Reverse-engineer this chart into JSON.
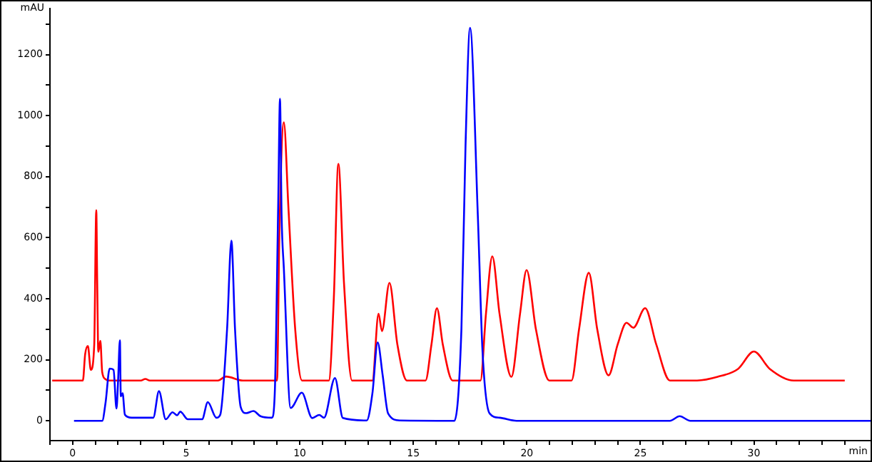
{
  "chart_data": {
    "type": "line",
    "xlabel": "min",
    "ylabel": "mAU",
    "xlim": [
      -1,
      35.2
    ],
    "ylim": [
      -65,
      1350
    ],
    "xticks": [
      {
        "value": -1,
        "label": null
      },
      0,
      {
        "value": 1,
        "label": null
      },
      {
        "value": 2,
        "label": null
      },
      {
        "value": 3,
        "label": null
      },
      {
        "value": 4,
        "label": null
      },
      5,
      {
        "value": 6,
        "label": null
      },
      {
        "value": 7,
        "label": null
      },
      {
        "value": 8,
        "label": null
      },
      {
        "value": 9,
        "label": null
      },
      10,
      {
        "value": 11,
        "label": null
      },
      {
        "value": 12,
        "label": null
      },
      {
        "value": 13,
        "label": null
      },
      {
        "value": 14,
        "label": null
      },
      15,
      {
        "value": 16,
        "label": null
      },
      {
        "value": 17,
        "label": null
      },
      {
        "value": 18,
        "label": null
      },
      {
        "value": 19,
        "label": null
      },
      20,
      {
        "value": 21,
        "label": null
      },
      {
        "value": 22,
        "label": null
      },
      {
        "value": 23,
        "label": null
      },
      {
        "value": 24,
        "label": null
      },
      25,
      {
        "value": 26,
        "label": null
      },
      {
        "value": 27,
        "label": null
      },
      {
        "value": 28,
        "label": null
      },
      {
        "value": 29,
        "label": null
      },
      30,
      {
        "value": 31,
        "label": null
      },
      {
        "value": 32,
        "label": null
      },
      {
        "value": 33,
        "label": null
      },
      {
        "value": 34,
        "label": null
      }
    ],
    "yticks": [
      0,
      {
        "value": 100,
        "label": null
      },
      200,
      {
        "value": 300,
        "label": null
      },
      400,
      {
        "value": 500,
        "label": null
      },
      600,
      {
        "value": 700,
        "label": null
      },
      800,
      {
        "value": 900,
        "label": null
      },
      1000,
      {
        "value": 1100,
        "label": null
      },
      1200,
      {
        "value": 1300,
        "label": null
      }
    ],
    "grid": false,
    "legend": false,
    "marker": "none",
    "line_style": "solid",
    "series": [
      {
        "color": "#0000ff",
        "x": [
          0.06,
          1.3,
          1.45,
          1.63,
          1.8,
          1.93,
          2.0,
          2.08,
          2.12,
          2.2,
          2.3,
          2.6,
          3.55,
          3.8,
          4.1,
          4.4,
          4.6,
          4.74,
          5.07,
          5.7,
          5.95,
          6.33,
          6.5,
          6.8,
          6.99,
          7.15,
          7.4,
          7.64,
          7.96,
          8.27,
          8.77,
          8.9,
          9.05,
          9.13,
          9.2,
          9.3,
          9.6,
          10.09,
          10.55,
          10.86,
          11.07,
          11.55,
          11.9,
          12.95,
          13.2,
          13.43,
          13.65,
          13.89,
          14.41,
          16.81,
          17.12,
          17.3,
          17.5,
          17.84,
          18.05,
          18.36,
          18.8,
          19.55,
          26.3,
          26.73,
          27.2,
          35.15
        ],
        "values": [
          0,
          0,
          60,
          171,
          167,
          40,
          130,
          264,
          80,
          90,
          20,
          10,
          10,
          97,
          5,
          28,
          18,
          30,
          5,
          5,
          61,
          10,
          20,
          300,
          590,
          300,
          45,
          25,
          32,
          15,
          10,
          90,
          700,
          1055,
          675,
          500,
          42,
          92,
          9,
          19,
          10,
          140,
          9,
          1,
          90,
          257,
          150,
          24,
          1,
          0,
          302,
          900,
          1288,
          677,
          226,
          24,
          10,
          0,
          0,
          15,
          0,
          0
        ]
      },
      {
        "color": "#ff0000",
        "x": [
          -0.9,
          0.45,
          0.55,
          0.67,
          0.8,
          0.95,
          1.04,
          1.08,
          1.13,
          1.22,
          1.3,
          1.45,
          1.6,
          3.0,
          3.2,
          3.4,
          6.4,
          6.75,
          7.5,
          9.0,
          9.1,
          9.3,
          9.5,
          9.8,
          10.1,
          11.28,
          11.5,
          11.7,
          11.95,
          12.3,
          13.2,
          13.47,
          13.62,
          13.95,
          14.3,
          14.72,
          15.54,
          15.8,
          16.04,
          16.3,
          16.73,
          17.96,
          18.2,
          18.48,
          18.8,
          19.32,
          19.7,
          19.99,
          20.4,
          20.99,
          21.97,
          22.3,
          22.73,
          23.1,
          23.6,
          24.0,
          24.39,
          24.69,
          25.21,
          25.7,
          26.3,
          27.5,
          28.4,
          29.3,
          30.0,
          30.7,
          31.75,
          34.0
        ],
        "values": [
          132,
          132,
          218,
          245,
          167,
          250,
          690,
          460,
          226,
          262,
          160,
          136,
          132,
          132,
          137,
          132,
          132,
          145,
          132,
          132,
          600,
          978,
          700,
          300,
          132,
          132,
          400,
          842,
          450,
          132,
          132,
          351,
          294,
          452,
          250,
          132,
          132,
          250,
          369,
          250,
          132,
          132,
          350,
          539,
          350,
          144,
          350,
          494,
          300,
          132,
          132,
          300,
          485,
          300,
          149,
          250,
          321,
          305,
          369,
          250,
          132,
          132,
          144,
          170,
          227,
          170,
          132,
          132
        ]
      }
    ]
  }
}
